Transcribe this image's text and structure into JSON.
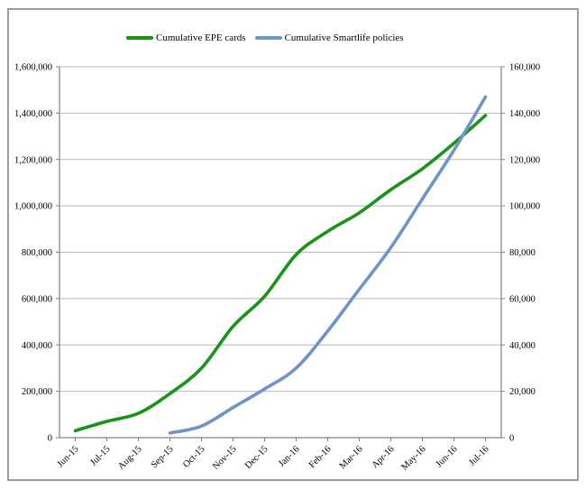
{
  "page": {
    "background": "#ffffff",
    "frame_border_color": "#9c9c9c"
  },
  "legend": {
    "position": "top",
    "items": [
      {
        "label": "Cumulative EPE cards",
        "color": "#189418"
      },
      {
        "label": "Cumulative Smartlife policies",
        "color": "#7094c8"
      }
    ]
  },
  "chart_data": {
    "type": "line",
    "smooth": true,
    "grid": true,
    "title": "",
    "xlabel": "",
    "ylabel_left": "",
    "ylabel_right": "",
    "categories": [
      "Jun-15",
      "Jul-15",
      "Aug-15",
      "Sep-15",
      "Oct-15",
      "Nov-15",
      "Dec-15",
      "Jan-16",
      "Feb-16",
      "Mar-16",
      "Apr-16",
      "May-16",
      "Jun-16",
      "Jul-16"
    ],
    "series": [
      {
        "name": "Cumulative EPE cards",
        "axis": "left",
        "color": "#189418",
        "values": [
          30000,
          70000,
          105000,
          190000,
          300000,
          480000,
          610000,
          790000,
          890000,
          970000,
          1070000,
          1160000,
          1270000,
          1390000
        ]
      },
      {
        "name": "Cumulative Smartlife policies",
        "axis": "right",
        "color": "#7094c8",
        "values": [
          null,
          null,
          null,
          2000,
          5000,
          13000,
          21000,
          30000,
          46000,
          64000,
          82000,
          103000,
          124000,
          147000
        ]
      }
    ],
    "left_axis": {
      "min": 0,
      "max": 1600000,
      "step": 200000,
      "tick_labels": [
        "0",
        "200,000",
        "400,000",
        "600,000",
        "800,000",
        "1,000,000",
        "1,200,000",
        "1,400,000",
        "1,600,000"
      ]
    },
    "right_axis": {
      "min": 0,
      "max": 160000,
      "step": 20000,
      "tick_labels": [
        "0",
        "20,000",
        "40,000",
        "60,000",
        "80,000",
        "100,000",
        "120,000",
        "140,000",
        "160,000"
      ]
    },
    "axis_color": "#808080",
    "gridline_color": "#b9b9b9",
    "line_width": 3.6
  }
}
